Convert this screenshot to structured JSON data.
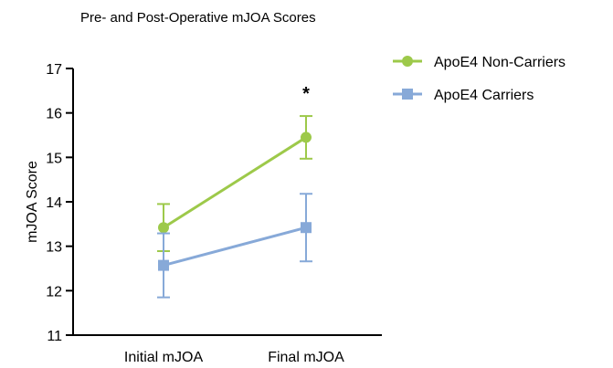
{
  "chart_data": {
    "type": "line",
    "title": "Pre- and Post-Operative mJOA Scores",
    "xlabel": "",
    "ylabel": "mJOA Score",
    "categories": [
      "Initial mJOA",
      "Final mJOA"
    ],
    "ylim": [
      11,
      17
    ],
    "yticks": [
      11,
      12,
      13,
      14,
      15,
      16,
      17
    ],
    "series": [
      {
        "name": "ApoE4 Non-Carriers",
        "marker": "circle",
        "color": "#9dc94a",
        "values": [
          13.42,
          15.45
        ],
        "error": [
          0.53,
          0.48
        ]
      },
      {
        "name": "ApoE4 Carriers",
        "marker": "square",
        "color": "#87a9d8",
        "values": [
          12.57,
          13.42
        ],
        "error": [
          0.72,
          0.76
        ]
      }
    ],
    "annotations": [
      {
        "text": "*",
        "category": "Final mJOA"
      }
    ],
    "legend_position": "top-right",
    "grid": false
  }
}
